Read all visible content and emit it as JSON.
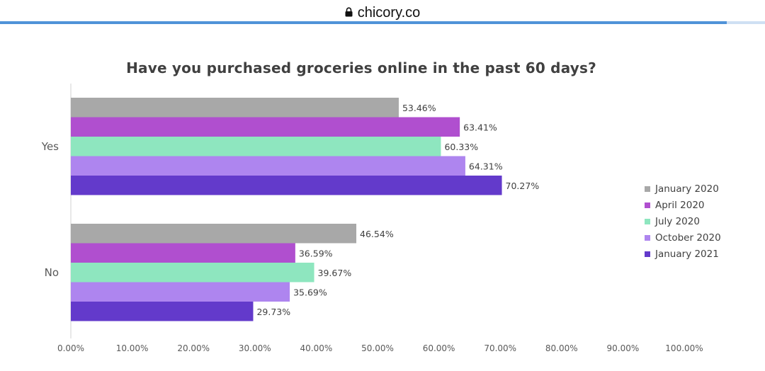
{
  "browser": {
    "url": "chicory.co",
    "lock_icon": "lock-icon",
    "load_progress": 0.95
  },
  "chart_data": {
    "type": "bar",
    "orientation": "horizontal",
    "title": "Have you purchased groceries online in the past 60 days?",
    "categories": [
      "Yes",
      "No"
    ],
    "series": [
      {
        "name": "January 2020",
        "color": "#a8a8a8",
        "values": [
          53.46,
          46.54
        ],
        "labels": [
          "53.46%",
          "46.54%"
        ]
      },
      {
        "name": "April 2020",
        "color": "#b04fcf",
        "values": [
          63.41,
          36.59
        ],
        "labels": [
          "63.41%",
          "36.59%"
        ]
      },
      {
        "name": "July 2020",
        "color": "#8ee6bf",
        "values": [
          60.33,
          39.67
        ],
        "labels": [
          "60.33%",
          "39.67%"
        ]
      },
      {
        "name": "October 2020",
        "color": "#ae85ef",
        "values": [
          64.31,
          35.69
        ],
        "labels": [
          "64.31%",
          "35.69%"
        ]
      },
      {
        "name": "January 2021",
        "color": "#633acb",
        "values": [
          70.27,
          29.73
        ],
        "labels": [
          "70.27%",
          "29.73%"
        ]
      }
    ],
    "xlim": [
      0,
      100
    ],
    "x_ticks": [
      "0.00%",
      "10.00%",
      "20.00%",
      "30.00%",
      "40.00%",
      "50.00%",
      "60.00%",
      "70.00%",
      "80.00%",
      "90.00%",
      "100.00%"
    ],
    "grid": false,
    "legend_position": "right"
  }
}
